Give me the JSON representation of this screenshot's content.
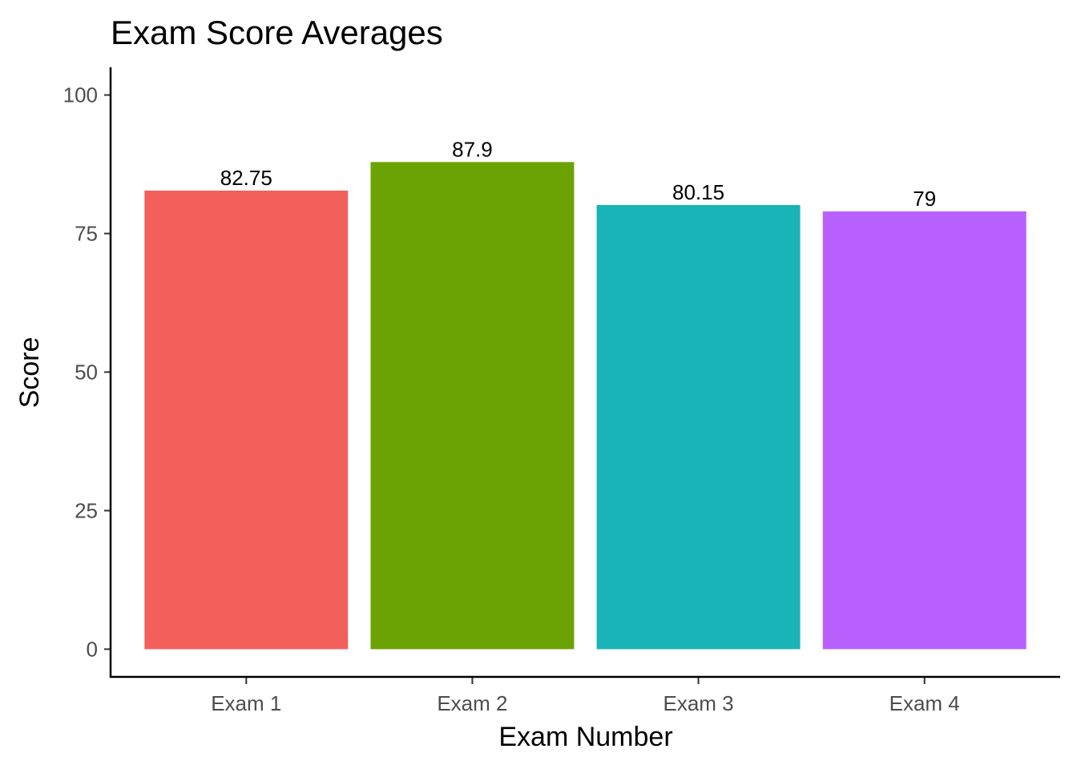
{
  "chart_data": {
    "type": "bar",
    "title": "Exam Score Averages",
    "xlabel": "Exam Number",
    "ylabel": "Score",
    "categories": [
      "Exam 1",
      "Exam 2",
      "Exam 3",
      "Exam 4"
    ],
    "values": [
      82.75,
      87.9,
      80.15,
      79
    ],
    "data_labels": [
      "82.75",
      "87.9",
      "80.15",
      "79"
    ],
    "colors": [
      "#F35F5B",
      "#6BA304",
      "#18B3B7",
      "#B961FF"
    ],
    "yticks": [
      0,
      25,
      50,
      75,
      100
    ],
    "ytick_labels": [
      "0",
      "25",
      "50",
      "75",
      "100"
    ],
    "ylim": [
      -5,
      105
    ],
    "grid": false,
    "legend": "none"
  }
}
